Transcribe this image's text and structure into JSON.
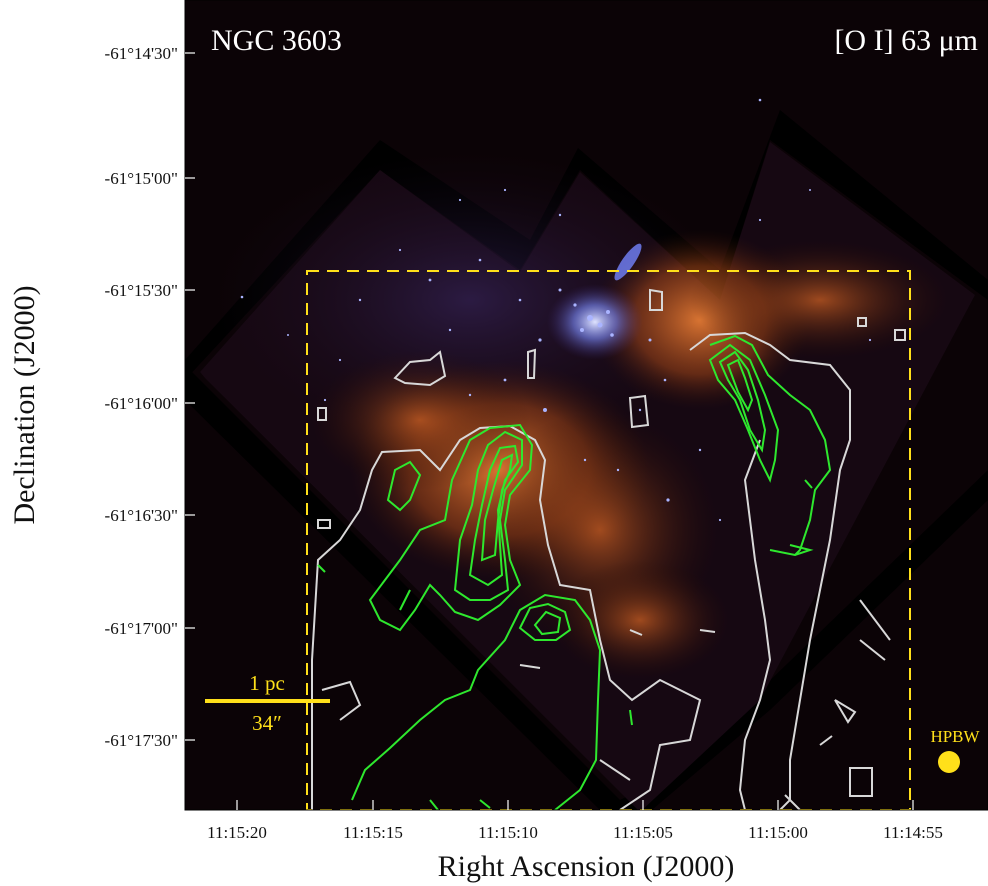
{
  "title_left": "NGC 3603",
  "title_right": "[O I] 63 μm",
  "xlabel": "Right Ascension (J2000)",
  "ylabel": "Declination (J2000)",
  "x_ticks": [
    "11:15:20",
    "11:15:15",
    "11:15:10",
    "11:15:05",
    "11:15:00",
    "11:14:55"
  ],
  "y_ticks": [
    "-61°14'30\"",
    "-61°15'00\"",
    "-61°15'30\"",
    "-61°16'00\"",
    "-61°16'30\"",
    "-61°17'00\"",
    "-61°17'30\""
  ],
  "scale_bar": {
    "top_label": "1 pc",
    "bottom_label": "34″"
  },
  "beam_label": "HPBW",
  "colors": {
    "background": "#0b0306",
    "contour_green": "#2ee82e",
    "contour_white": "#d8d8d8",
    "annotation_yellow": "#ffe01a",
    "nebula": "#c0571e",
    "stars": "#8f9dff"
  }
}
